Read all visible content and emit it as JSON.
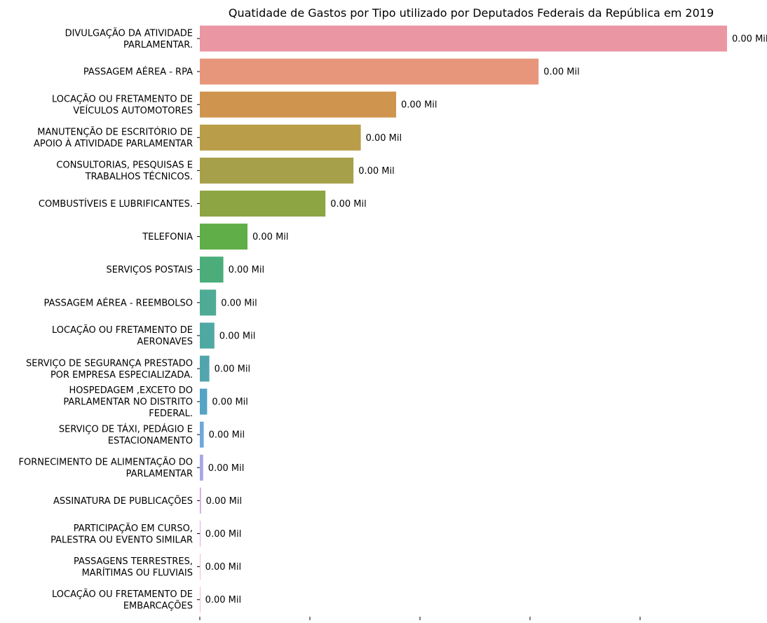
{
  "chart_data": {
    "type": "bar",
    "orientation": "horizontal",
    "title": "Quatidade de Gastos por Tipo utilizado por Deputados Federais da República em 2019",
    "xlabel": "",
    "ylabel": "",
    "xlim": [
      0,
      1
    ],
    "grid": false,
    "legend": "none",
    "value_suffix": " Mil",
    "categories": [
      [
        "DIVULGAÇÃO DA ATIVIDADE",
        "PARLAMENTAR."
      ],
      [
        "PASSAGEM AÉREA - RPA"
      ],
      [
        "LOCAÇÃO OU FRETAMENTO DE",
        "VEÍCULOS AUTOMOTORES"
      ],
      [
        "MANUTENÇÃO DE ESCRITÓRIO DE",
        "APOIO À ATIVIDADE PARLAMENTAR"
      ],
      [
        "CONSULTORIAS, PESQUISAS E",
        "TRABALHOS TÉCNICOS."
      ],
      [
        "COMBUSTÍVEIS E LUBRIFICANTES."
      ],
      [
        "TELEFONIA"
      ],
      [
        "SERVIÇOS POSTAIS"
      ],
      [
        "PASSAGEM AÉREA - REEMBOLSO"
      ],
      [
        "LOCAÇÃO OU FRETAMENTO DE",
        "AERONAVES"
      ],
      [
        "SERVIÇO DE SEGURANÇA PRESTADO",
        "POR EMPRESA ESPECIALIZADA."
      ],
      [
        "HOSPEDAGEM ,EXCETO DO",
        "PARLAMENTAR NO DISTRITO",
        "FEDERAL."
      ],
      [
        "SERVIÇO DE TÁXI, PEDÁGIO E",
        "ESTACIONAMENTO"
      ],
      [
        "FORNECIMENTO DE ALIMENTAÇÃO DO",
        "PARLAMENTAR"
      ],
      [
        "ASSINATURA DE PUBLICAÇÕES"
      ],
      [
        "PARTICIPAÇÃO EM CURSO,",
        "PALESTRA OU EVENTO SIMILAR"
      ],
      [
        "PASSAGENS TERRESTRES,",
        "MARÍTIMAS OU FLUVIAIS"
      ],
      [
        "LOCAÇÃO OU FRETAMENTO DE",
        "EMBARCAÇÕES"
      ]
    ],
    "relative_values": [
      0.94,
      0.604,
      0.35,
      0.287,
      0.274,
      0.224,
      0.085,
      0.042,
      0.029,
      0.026,
      0.017,
      0.013,
      0.007,
      0.006,
      0.002,
      0.001,
      0.0003,
      0.0001
    ],
    "data_labels": [
      "0.00 Mil",
      "0.00 Mil",
      "0.00 Mil",
      "0.00 Mil",
      "0.00 Mil",
      "0.00 Mil",
      "0.00 Mil",
      "0.00 Mil",
      "0.00 Mil",
      "0.00 Mil",
      "0.00 Mil",
      "0.00 Mil",
      "0.00 Mil",
      "0.00 Mil",
      "0.00 Mil",
      "0.00 Mil",
      "0.00 Mil",
      "0.00 Mil"
    ],
    "colors": [
      "#ea96a3",
      "#e8967b",
      "#cf944d",
      "#b99d48",
      "#a7a04b",
      "#8ea543",
      "#5fae47",
      "#4bad7a",
      "#4fab95",
      "#50a8a3",
      "#52a5ad",
      "#56a3c5",
      "#70a7dd",
      "#a7a6e5",
      "#d29ae6",
      "#e191d3",
      "#e48fbe",
      "#e893ad"
    ],
    "x_tick_count": 5
  }
}
